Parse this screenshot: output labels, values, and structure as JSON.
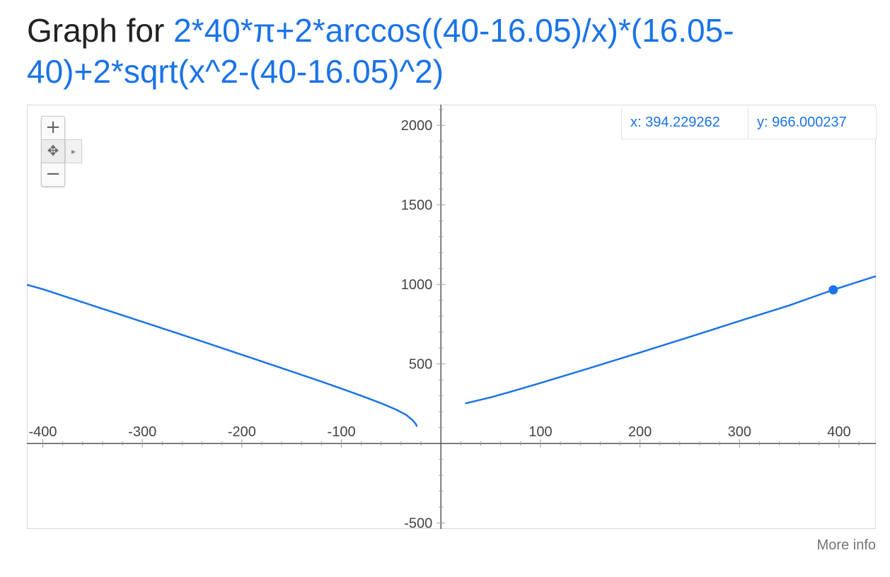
{
  "heading": {
    "prefix": "Graph for",
    "formula": "2*40*π+2*arccos((40-16.05)/x)*(16.05-40)+2*sqrt(x^2-(40-16.05)^2)"
  },
  "readout": {
    "x_text": "x: 394.229262",
    "y_text": "y: 966.000237"
  },
  "zoom_controls": {
    "plus": "+",
    "pan": "✥",
    "arrow": "▸",
    "minus": "−"
  },
  "footer": {
    "more_info": "More info"
  },
  "colors": {
    "curve": "#1a73e8",
    "accent_text": "#1a73e8",
    "axis": "#555555"
  },
  "chart_data": {
    "type": "line",
    "title": "",
    "xlabel": "",
    "ylabel": "",
    "xlim": [
      -416,
      437
    ],
    "ylim": [
      -537,
      2130
    ],
    "grid": false,
    "x_ticks": [
      -400,
      -300,
      -200,
      -100,
      100,
      200,
      300,
      400
    ],
    "x_tick_labels": [
      "-400",
      "-300",
      "-200",
      "-100",
      "100",
      "200",
      "300",
      "400"
    ],
    "y_ticks": [
      2000,
      1500,
      1000,
      500,
      -500
    ],
    "y_tick_labels": [
      "2000",
      "1500",
      "1000",
      "500",
      "-500"
    ],
    "series": [
      {
        "x": [
          -416,
          -400,
          -360,
          -320,
          -280,
          -240,
          -200,
          -160,
          -120,
          -100,
          -80,
          -60,
          -45,
          -35,
          -29,
          -25.5,
          -24
        ],
        "y": [
          998,
          970,
          888,
          806,
          724,
          642,
          558,
          474,
          389,
          345,
          300,
          253,
          213,
          180,
          150,
          125,
          106
        ]
      },
      {
        "x": [
          24.5,
          26,
          30,
          40,
          50,
          70,
          100,
          150,
          200,
          250,
          300,
          350,
          394.229262,
          437
        ],
        "y": [
          252,
          254,
          260,
          275,
          290,
          325,
          380,
          475,
          572,
          670,
          770,
          868,
          966.000237,
          1052
        ]
      }
    ],
    "highlight_point": {
      "x": 394.229262,
      "y": 966.000237
    }
  }
}
